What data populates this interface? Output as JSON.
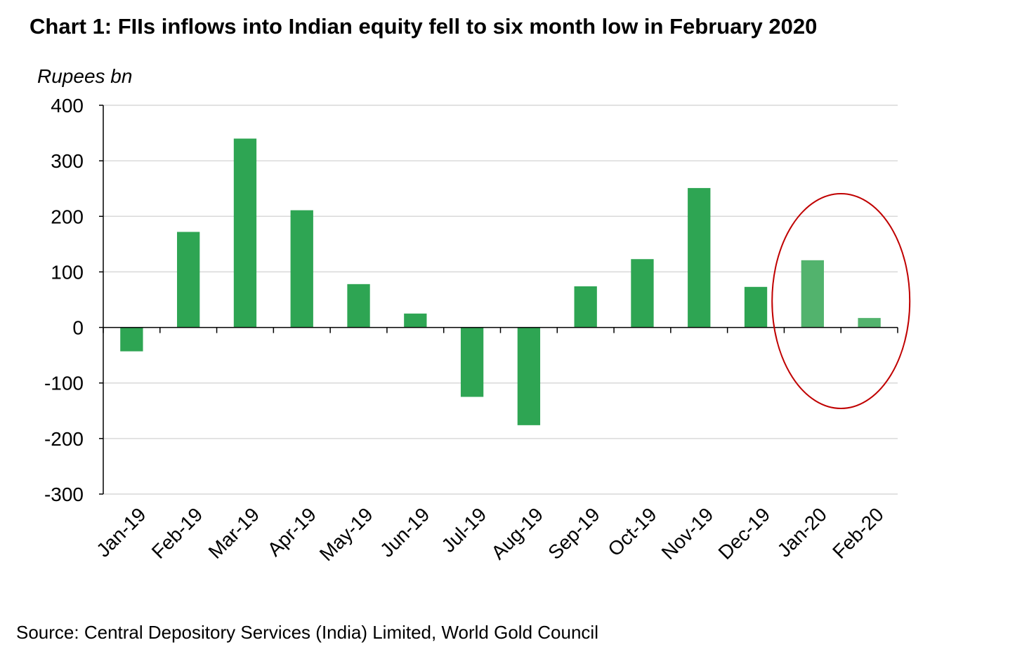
{
  "title": "Chart 1: FIIs inflows into Indian equity fell to six month low in February 2020",
  "source": "Source: Central Depository Services (India) Limited, World Gold Council",
  "colors": {
    "bar": "#2ea553",
    "bar_highlight": "#52b36d",
    "highlight_ellipse": "#c00000",
    "grid": "#d9d9d9",
    "axis": "#000000"
  },
  "chart_data": {
    "type": "bar",
    "title": "Chart 1: FIIs inflows into Indian equity fell to six month low in February 2020",
    "unit_label": "Rupees bn",
    "xlabel": "",
    "ylabel": "",
    "categories": [
      "Jan-19",
      "Feb-19",
      "Mar-19",
      "Apr-19",
      "May-19",
      "Jun-19",
      "Jul-19",
      "Aug-19",
      "Sep-19",
      "Oct-19",
      "Nov-19",
      "Dec-19",
      "Jan-20",
      "Feb-20"
    ],
    "values": [
      -43,
      172,
      340,
      211,
      78,
      25,
      -125,
      -176,
      74,
      123,
      251,
      73,
      121,
      17
    ],
    "highlighted_categories": [
      "Jan-20",
      "Feb-20"
    ],
    "ylim": [
      -300,
      400
    ],
    "yticks": [
      400,
      300,
      200,
      100,
      0,
      -100,
      -200,
      -300
    ],
    "grid": true,
    "legend": "none"
  }
}
